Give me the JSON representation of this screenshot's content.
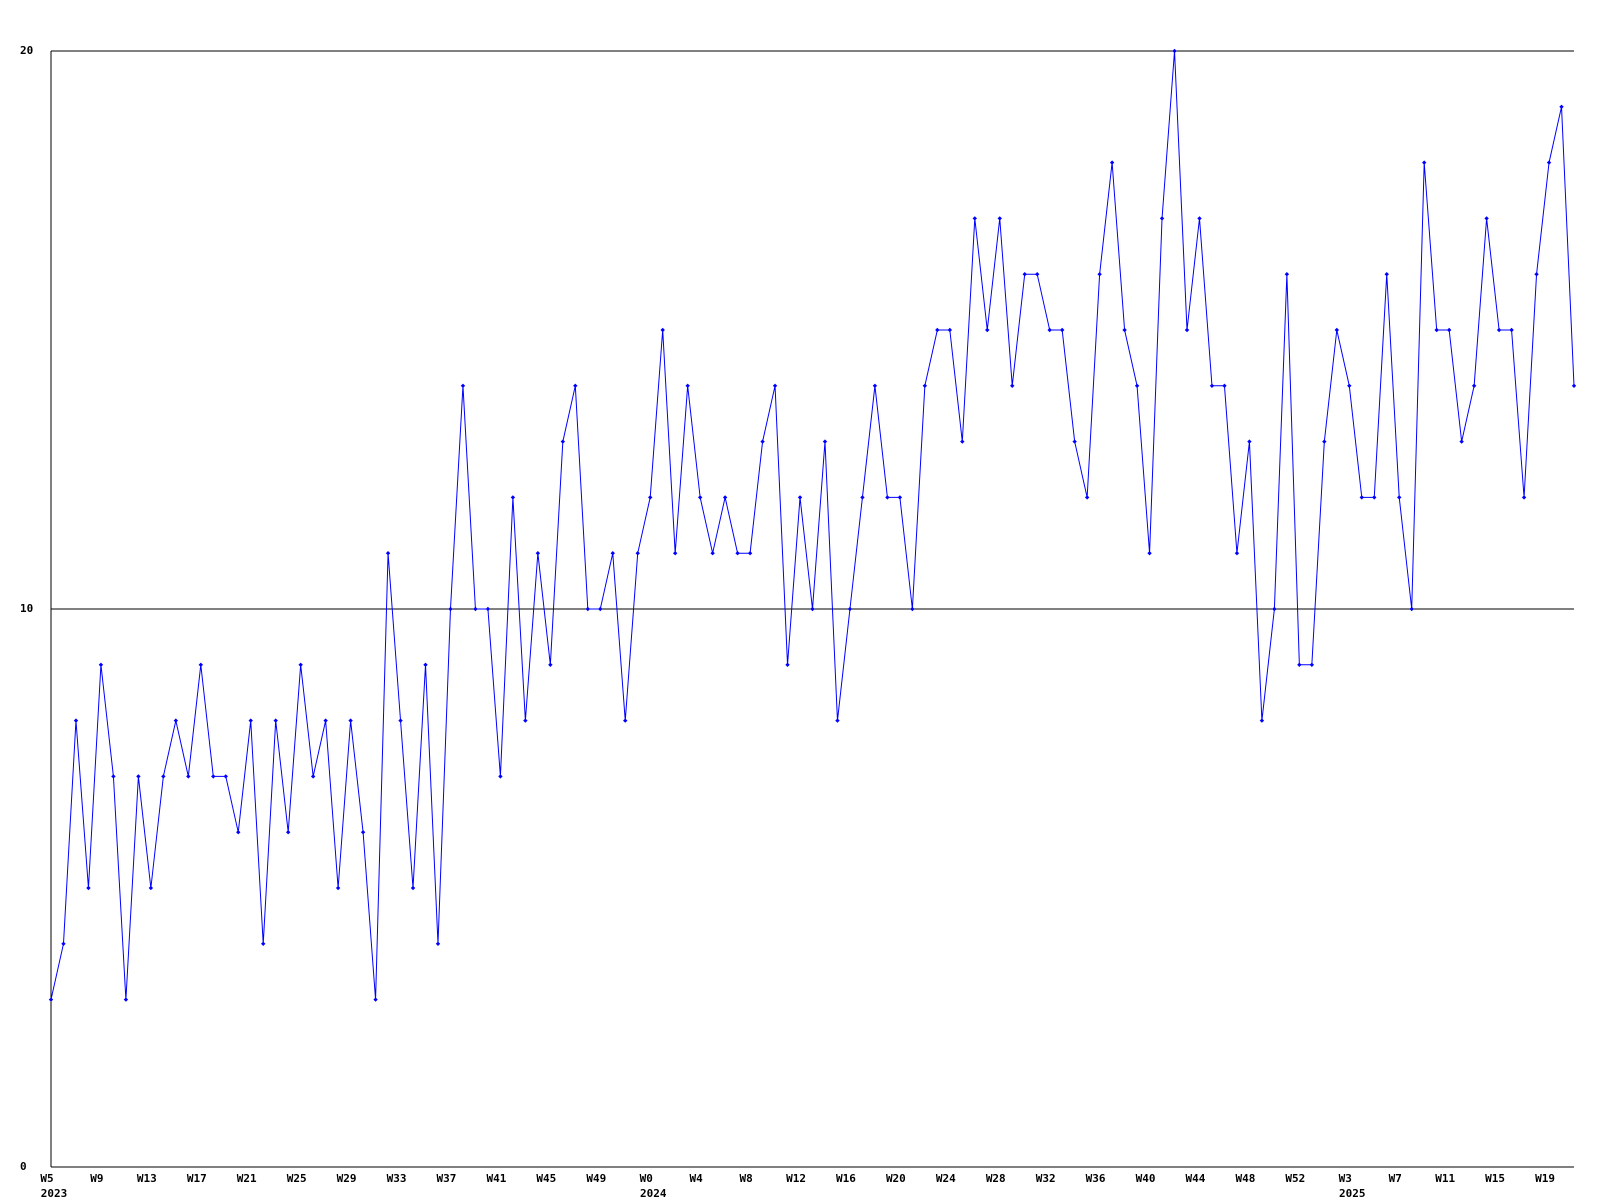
{
  "chart_data": {
    "type": "line",
    "color": "#0000ff",
    "categories": [
      "W5",
      null,
      null,
      null,
      "W9",
      null,
      null,
      null,
      "W13",
      null,
      null,
      null,
      "W17",
      null,
      null,
      null,
      "W21",
      null,
      null,
      null,
      "W25",
      null,
      null,
      null,
      "W29",
      null,
      null,
      null,
      "W33",
      null,
      null,
      null,
      "W37",
      null,
      null,
      null,
      "W41",
      null,
      null,
      null,
      "W45",
      null,
      null,
      null,
      "W49",
      null,
      null,
      null,
      "W0",
      null,
      null,
      null,
      "W4",
      null,
      null,
      null,
      "W8",
      null,
      null,
      null,
      "W12",
      null,
      null,
      null,
      "W16",
      null,
      null,
      null,
      "W20",
      null,
      null,
      null,
      "W24",
      null,
      null,
      null,
      "W28",
      null,
      null,
      null,
      "W32",
      null,
      null,
      null,
      "W36",
      null,
      null,
      null,
      "W40",
      null,
      null,
      null,
      "W44",
      null,
      null,
      null,
      "W48",
      null,
      null,
      null,
      "W52",
      null,
      null,
      null,
      "W3",
      null,
      null,
      null,
      "W7",
      null,
      null,
      null,
      "W11",
      null,
      null,
      null,
      "W15",
      null,
      null,
      null,
      "W19",
      null,
      null
    ],
    "years": [
      "2023",
      null,
      null,
      null,
      null,
      null,
      null,
      null,
      null,
      null,
      null,
      null,
      null,
      null,
      null,
      null,
      null,
      null,
      null,
      null,
      null,
      null,
      null,
      null,
      null,
      null,
      null,
      null,
      null,
      null,
      null,
      null,
      null,
      null,
      null,
      null,
      null,
      null,
      null,
      null,
      null,
      null,
      null,
      null,
      null,
      null,
      null,
      null,
      "2024",
      null,
      null,
      null,
      null,
      null,
      null,
      null,
      null,
      null,
      null,
      null,
      null,
      null,
      null,
      null,
      null,
      null,
      null,
      null,
      null,
      null,
      null,
      null,
      null,
      null,
      null,
      null,
      null,
      null,
      null,
      null,
      null,
      null,
      null,
      null,
      null,
      null,
      null,
      null,
      null,
      null,
      null,
      null,
      null,
      null,
      null,
      null,
      null,
      null,
      null,
      null,
      null,
      null,
      null,
      null,
      "2025",
      null,
      null,
      null,
      null,
      null,
      null,
      null,
      null,
      null,
      null,
      null,
      null,
      null,
      null,
      null,
      null,
      null
    ],
    "values": [
      3,
      4,
      8,
      5,
      9,
      7,
      3,
      7,
      5,
      7,
      8,
      7,
      9,
      7,
      7,
      6,
      8,
      4,
      8,
      6,
      9,
      7,
      8,
      5,
      8,
      6,
      3,
      11,
      8,
      5,
      9,
      4,
      10,
      14,
      10,
      10,
      7,
      12,
      8,
      11,
      9,
      13,
      14,
      10,
      10,
      11,
      8,
      11,
      12,
      15,
      11,
      14,
      12,
      11,
      12,
      11,
      11,
      13,
      14,
      9,
      12,
      10,
      13,
      8,
      10,
      12,
      14,
      12,
      12,
      10,
      14,
      15,
      15,
      13,
      17,
      15,
      17,
      14,
      16,
      16,
      15,
      15,
      13,
      12,
      16,
      18,
      15,
      14,
      11,
      17,
      20,
      15,
      17,
      14,
      14,
      11,
      13,
      8,
      10,
      16,
      9,
      9,
      13,
      15,
      14,
      12,
      12,
      16,
      12,
      10,
      18,
      15,
      15,
      13,
      14,
      17,
      15,
      15,
      12,
      16,
      18,
      19,
      14
    ],
    "ylim": [
      0,
      20
    ],
    "yticks": [
      0,
      10,
      20
    ],
    "grid": true
  }
}
